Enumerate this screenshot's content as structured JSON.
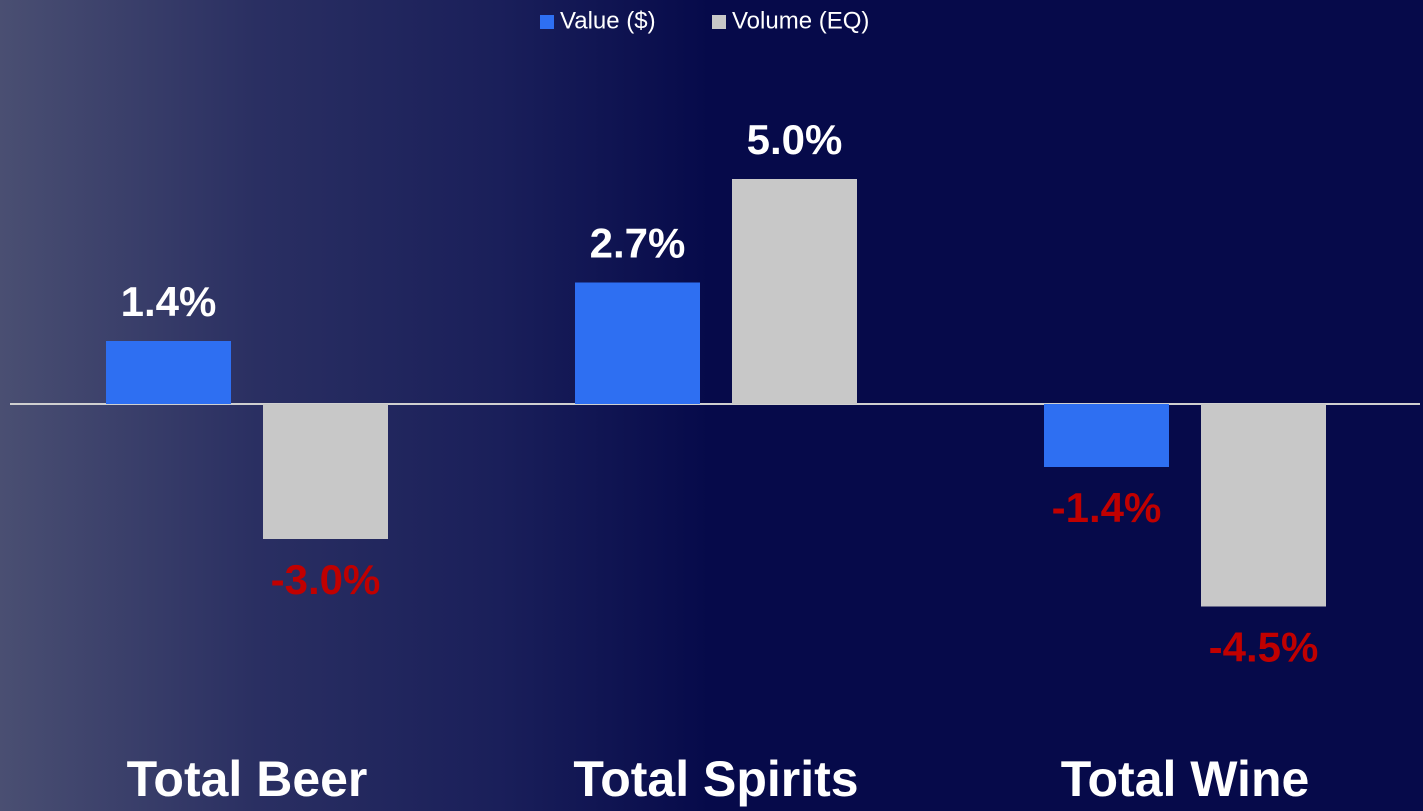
{
  "chart_data": {
    "type": "bar",
    "categories": [
      "Total Beer",
      "Total Spirits",
      "Total Wine"
    ],
    "series": [
      {
        "name": "Value ($)",
        "color": "#2e6ff2",
        "values": [
          1.4,
          2.7,
          -1.4
        ],
        "value_labels": [
          "1.4%",
          "2.7%",
          "-1.4%"
        ]
      },
      {
        "name": "Volume (EQ)",
        "color": "#c8c8c8",
        "values": [
          -3.0,
          5.0,
          -4.5
        ],
        "value_labels": [
          "-3.0%",
          "5.0%",
          "-4.5%"
        ]
      }
    ],
    "legend": "top"
  }
}
